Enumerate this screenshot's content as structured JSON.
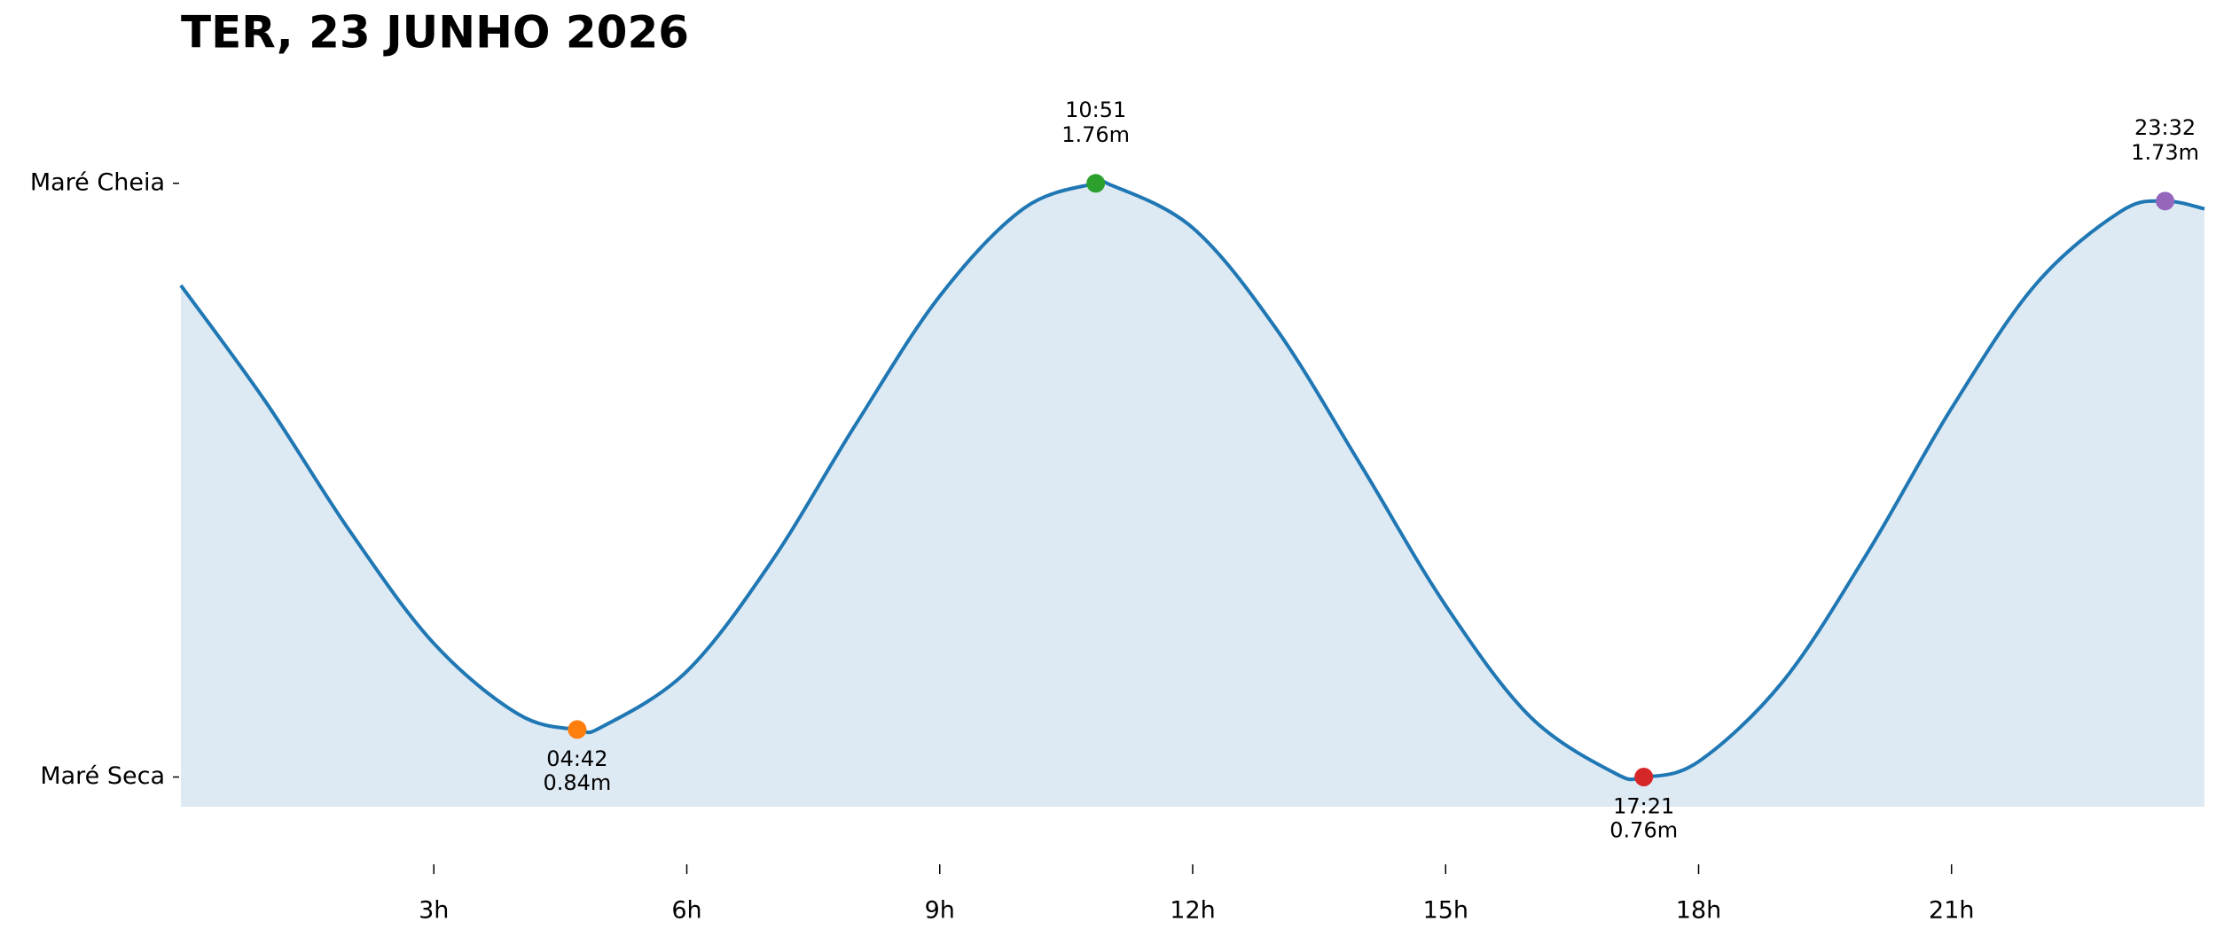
{
  "chart_data": {
    "type": "line",
    "title": "TER, 23 JUNHO 2026",
    "curve": {
      "color": "#1f77b4",
      "fill": "#dde9f3",
      "x": [
        0,
        1,
        2,
        3,
        4,
        4.7,
        5,
        6,
        7,
        8,
        9,
        10,
        10.85,
        11,
        12,
        13,
        14,
        15,
        16,
        17,
        17.35,
        18,
        19,
        20,
        21,
        22,
        23,
        23.533,
        24
      ],
      "values": [
        1.588,
        1.393,
        1.175,
        0.985,
        0.866,
        0.84,
        0.845,
        0.938,
        1.122,
        1.353,
        1.57,
        1.718,
        1.76,
        1.759,
        1.685,
        1.513,
        1.284,
        1.049,
        0.862,
        0.767,
        0.76,
        0.786,
        0.921,
        1.137,
        1.381,
        1.59,
        1.712,
        1.73,
        1.717
      ]
    },
    "extremes": {
      "x": [
        4.7,
        10.85,
        17.35,
        23.533
      ],
      "values": [
        0.84,
        1.76,
        0.76,
        1.73
      ],
      "time_labels": [
        "04:42",
        "10:51",
        "17:21",
        "23:32"
      ],
      "value_labels": [
        "0.84m",
        "1.76m",
        "0.76m",
        "1.73m"
      ],
      "colors": [
        "#ff7f0e",
        "#2ca02c",
        "#d62728",
        "#9467bd"
      ]
    },
    "xlim": [
      0,
      24
    ],
    "ylim": [
      0.71,
      1.9
    ],
    "xticks": [
      {
        "value": 3,
        "label": "3h"
      },
      {
        "value": 6,
        "label": "6h"
      },
      {
        "value": 9,
        "label": "9h"
      },
      {
        "value": 12,
        "label": "12h"
      },
      {
        "value": 15,
        "label": "15h"
      },
      {
        "value": 18,
        "label": "18h"
      },
      {
        "value": 21,
        "label": "21h"
      }
    ],
    "yticks": [
      {
        "value": 1.76,
        "label": "Maré Cheia"
      },
      {
        "value": 0.76,
        "label": "Maré Seca"
      }
    ]
  }
}
